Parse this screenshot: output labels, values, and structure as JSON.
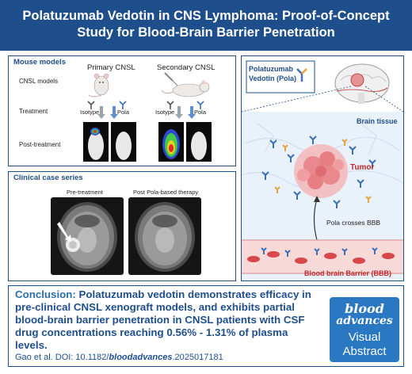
{
  "header": {
    "title_line1": "Polatuzumab Vedotin in CNS Lymphoma: Proof-of-Concept",
    "title_line2": "Study for Blood-Brain Barrier Penetration"
  },
  "mouse_models": {
    "title": "Mouse models",
    "row_labels": [
      "CNSL models",
      "Treatment",
      "Post-treatment"
    ],
    "primary": "Primary CNSL",
    "secondary": "Secondary CNSL",
    "isotype": "Isotype",
    "pola": "Pola"
  },
  "clinical": {
    "title": "Clinical case series",
    "pre": "Pre-treatment",
    "post": "Post Pola-based therapy"
  },
  "brain_panel": {
    "drug_line1": "Polatuzumab",
    "drug_line2": "Vedotin (Pola)",
    "brain_tissue": "Brain tissue",
    "tumor": "Tumor",
    "crosses": "Pola crosses BBB",
    "bbb": "Blood brain Barrier (BBB)"
  },
  "conclusion": {
    "label": "Conclusion:",
    "text": "Polatuzumab vedotin demonstrates efficacy in pre-clinical CNSL xenograft models, and exhibits partial blood-brain barrier penetration in CNSL patients with CSF drug concentrations reaching 0.56% - 1.31% of plasma levels."
  },
  "citation": {
    "authors": "Gao et al. DOI: 10.1182/",
    "doi_emph": "bloodadvances",
    "doi_end": ".2025017181"
  },
  "logo": {
    "line1": "blood",
    "line2": "advances",
    "line3": "Visual",
    "line4": "Abstract"
  },
  "colors": {
    "brand_blue": "#1f4e8c",
    "accent_blue": "#2a6db0",
    "tumor_red": "#c0292b",
    "antibody_blue": "#3b6fb6",
    "antibody_orange": "#e8a33b"
  }
}
